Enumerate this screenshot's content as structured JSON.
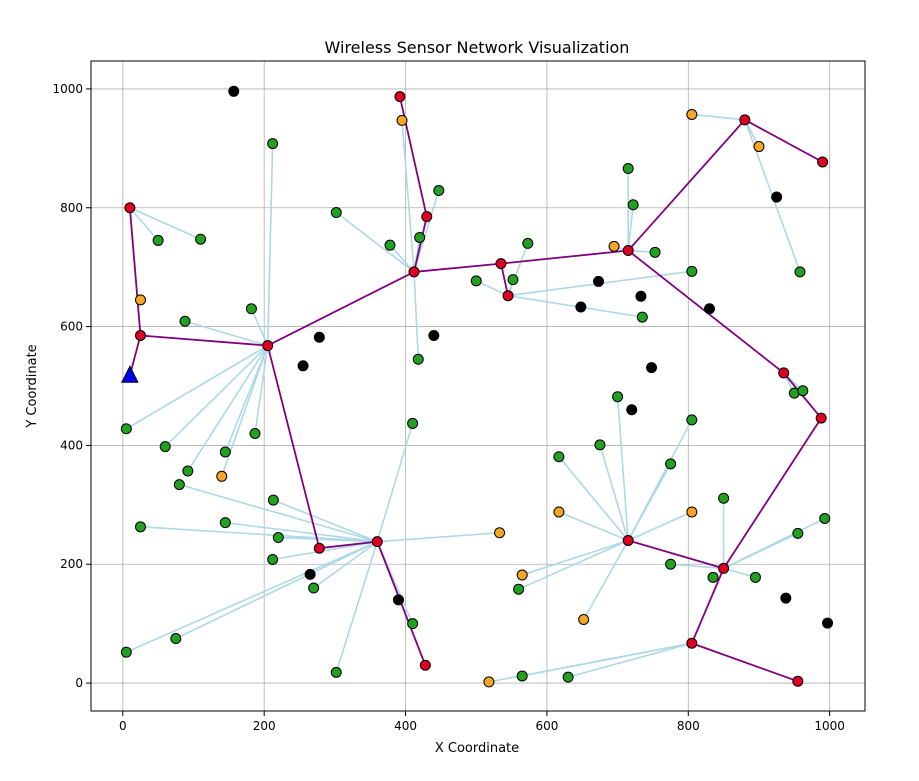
{
  "chart_data": {
    "type": "scatter",
    "title": "Wireless Sensor Network Visualization",
    "xlabel": "X Coordinate",
    "ylabel": "Y Coordinate",
    "xlim": [
      -45,
      1050
    ],
    "ylim": [
      -47,
      1047
    ],
    "xticks": [
      0,
      200,
      400,
      600,
      800,
      1000
    ],
    "yticks": [
      0,
      200,
      400,
      600,
      800,
      1000
    ],
    "grid": true,
    "colors": {
      "sensor": "#22a022",
      "sensor_highlight": "#ffffff",
      "cluster_head": "#dd0022",
      "gateway": "#f5a623",
      "dead": "#000000",
      "base_station": "#0000ee",
      "sensor_link": "#add8e6",
      "backbone_link": "#800080",
      "grid": "#b0b0b0"
    },
    "base_station": {
      "x": 10,
      "y": 518
    },
    "cluster_heads": [
      {
        "x": 10,
        "y": 800
      },
      {
        "x": 25,
        "y": 585
      },
      {
        "x": 205,
        "y": 568
      },
      {
        "x": 392,
        "y": 987
      },
      {
        "x": 430,
        "y": 785
      },
      {
        "x": 412,
        "y": 692
      },
      {
        "x": 535,
        "y": 706
      },
      {
        "x": 545,
        "y": 652
      },
      {
        "x": 715,
        "y": 728
      },
      {
        "x": 880,
        "y": 948
      },
      {
        "x": 990,
        "y": 877
      },
      {
        "x": 935,
        "y": 522
      },
      {
        "x": 988,
        "y": 446
      },
      {
        "x": 278,
        "y": 227
      },
      {
        "x": 360,
        "y": 238
      },
      {
        "x": 428,
        "y": 30
      },
      {
        "x": 715,
        "y": 240
      },
      {
        "x": 850,
        "y": 193
      },
      {
        "x": 805,
        "y": 67
      },
      {
        "x": 955,
        "y": 3
      }
    ],
    "gateways": [
      {
        "x": 25,
        "y": 645
      },
      {
        "x": 140,
        "y": 348
      },
      {
        "x": 395,
        "y": 947
      },
      {
        "x": 695,
        "y": 735
      },
      {
        "x": 805,
        "y": 957
      },
      {
        "x": 900,
        "y": 903
      },
      {
        "x": 533,
        "y": 253
      },
      {
        "x": 565,
        "y": 182
      },
      {
        "x": 617,
        "y": 288
      },
      {
        "x": 652,
        "y": 107
      },
      {
        "x": 805,
        "y": 288
      },
      {
        "x": 518,
        "y": 2
      }
    ],
    "sensors": [
      {
        "x": 50,
        "y": 745
      },
      {
        "x": 110,
        "y": 747
      },
      {
        "x": 212,
        "y": 908
      },
      {
        "x": 302,
        "y": 792
      },
      {
        "x": 378,
        "y": 737
      },
      {
        "x": 420,
        "y": 750
      },
      {
        "x": 447,
        "y": 829
      },
      {
        "x": 182,
        "y": 630
      },
      {
        "x": 88,
        "y": 609
      },
      {
        "x": 418,
        "y": 545
      },
      {
        "x": 500,
        "y": 677
      },
      {
        "x": 552,
        "y": 679
      },
      {
        "x": 573,
        "y": 740
      },
      {
        "x": 722,
        "y": 805
      },
      {
        "x": 715,
        "y": 866
      },
      {
        "x": 753,
        "y": 725
      },
      {
        "x": 805,
        "y": 693
      },
      {
        "x": 735,
        "y": 616
      },
      {
        "x": 958,
        "y": 692
      },
      {
        "x": 950,
        "y": 488
      },
      {
        "x": 962,
        "y": 492
      },
      {
        "x": 5,
        "y": 428
      },
      {
        "x": 60,
        "y": 398
      },
      {
        "x": 92,
        "y": 357
      },
      {
        "x": 145,
        "y": 389
      },
      {
        "x": 187,
        "y": 420
      },
      {
        "x": 80,
        "y": 334
      },
      {
        "x": 213,
        "y": 308
      },
      {
        "x": 145,
        "y": 270
      },
      {
        "x": 25,
        "y": 263
      },
      {
        "x": 220,
        "y": 245
      },
      {
        "x": 212,
        "y": 208
      },
      {
        "x": 270,
        "y": 160
      },
      {
        "x": 5,
        "y": 52
      },
      {
        "x": 75,
        "y": 75
      },
      {
        "x": 302,
        "y": 18
      },
      {
        "x": 410,
        "y": 437
      },
      {
        "x": 410,
        "y": 100
      },
      {
        "x": 617,
        "y": 381
      },
      {
        "x": 675,
        "y": 401
      },
      {
        "x": 700,
        "y": 482
      },
      {
        "x": 805,
        "y": 443
      },
      {
        "x": 775,
        "y": 369
      },
      {
        "x": 850,
        "y": 311
      },
      {
        "x": 560,
        "y": 158
      },
      {
        "x": 775,
        "y": 200
      },
      {
        "x": 835,
        "y": 178
      },
      {
        "x": 895,
        "y": 178
      },
      {
        "x": 955,
        "y": 252
      },
      {
        "x": 993,
        "y": 277
      },
      {
        "x": 565,
        "y": 12
      },
      {
        "x": 630,
        "y": 10
      }
    ],
    "dead_nodes": [
      {
        "x": 157,
        "y": 996
      },
      {
        "x": 278,
        "y": 582
      },
      {
        "x": 255,
        "y": 534
      },
      {
        "x": 440,
        "y": 585
      },
      {
        "x": 648,
        "y": 633
      },
      {
        "x": 673,
        "y": 676
      },
      {
        "x": 733,
        "y": 651
      },
      {
        "x": 830,
        "y": 630
      },
      {
        "x": 925,
        "y": 818
      },
      {
        "x": 748,
        "y": 531
      },
      {
        "x": 720,
        "y": 460
      },
      {
        "x": 265,
        "y": 183
      },
      {
        "x": 390,
        "y": 140
      },
      {
        "x": 938,
        "y": 143
      },
      {
        "x": 997,
        "y": 101
      }
    ],
    "backbone_links": [
      [
        [
          10,
          518
        ],
        [
          25,
          585
        ]
      ],
      [
        [
          25,
          585
        ],
        [
          10,
          800
        ]
      ],
      [
        [
          25,
          585
        ],
        [
          205,
          568
        ]
      ],
      [
        [
          205,
          568
        ],
        [
          412,
          692
        ]
      ],
      [
        [
          205,
          568
        ],
        [
          278,
          227
        ]
      ],
      [
        [
          278,
          227
        ],
        [
          360,
          238
        ]
      ],
      [
        [
          360,
          238
        ],
        [
          428,
          30
        ]
      ],
      [
        [
          412,
          692
        ],
        [
          430,
          785
        ]
      ],
      [
        [
          430,
          785
        ],
        [
          392,
          987
        ]
      ],
      [
        [
          412,
          692
        ],
        [
          535,
          706
        ]
      ],
      [
        [
          535,
          706
        ],
        [
          545,
          652
        ]
      ],
      [
        [
          535,
          706
        ],
        [
          715,
          728
        ]
      ],
      [
        [
          715,
          728
        ],
        [
          880,
          948
        ]
      ],
      [
        [
          880,
          948
        ],
        [
          990,
          877
        ]
      ],
      [
        [
          715,
          728
        ],
        [
          935,
          522
        ]
      ],
      [
        [
          935,
          522
        ],
        [
          988,
          446
        ]
      ],
      [
        [
          988,
          446
        ],
        [
          850,
          193
        ]
      ],
      [
        [
          850,
          193
        ],
        [
          715,
          240
        ]
      ],
      [
        [
          850,
          193
        ],
        [
          805,
          67
        ]
      ],
      [
        [
          805,
          67
        ],
        [
          955,
          3
        ]
      ]
    ],
    "sensor_links": [
      [
        [
          10,
          800
        ],
        [
          50,
          745
        ]
      ],
      [
        [
          10,
          800
        ],
        [
          110,
          747
        ]
      ],
      [
        [
          205,
          568
        ],
        [
          212,
          908
        ]
      ],
      [
        [
          205,
          568
        ],
        [
          182,
          630
        ]
      ],
      [
        [
          205,
          568
        ],
        [
          88,
          609
        ]
      ],
      [
        [
          205,
          568
        ],
        [
          5,
          428
        ]
      ],
      [
        [
          205,
          568
        ],
        [
          60,
          398
        ]
      ],
      [
        [
          205,
          568
        ],
        [
          92,
          357
        ]
      ],
      [
        [
          205,
          568
        ],
        [
          145,
          389
        ]
      ],
      [
        [
          205,
          568
        ],
        [
          187,
          420
        ]
      ],
      [
        [
          205,
          568
        ],
        [
          140,
          348
        ]
      ],
      [
        [
          412,
          692
        ],
        [
          302,
          792
        ]
      ],
      [
        [
          412,
          692
        ],
        [
          378,
          737
        ]
      ],
      [
        [
          412,
          692
        ],
        [
          420,
          750
        ]
      ],
      [
        [
          412,
          692
        ],
        [
          447,
          829
        ]
      ],
      [
        [
          412,
          692
        ],
        [
          395,
          947
        ]
      ],
      [
        [
          412,
          692
        ],
        [
          418,
          545
        ]
      ],
      [
        [
          545,
          652
        ],
        [
          500,
          677
        ]
      ],
      [
        [
          545,
          652
        ],
        [
          552,
          679
        ]
      ],
      [
        [
          545,
          652
        ],
        [
          573,
          740
        ]
      ],
      [
        [
          545,
          652
        ],
        [
          805,
          693
        ]
      ],
      [
        [
          545,
          652
        ],
        [
          735,
          616
        ]
      ],
      [
        [
          715,
          728
        ],
        [
          722,
          805
        ]
      ],
      [
        [
          715,
          728
        ],
        [
          715,
          866
        ]
      ],
      [
        [
          715,
          728
        ],
        [
          695,
          735
        ]
      ],
      [
        [
          715,
          728
        ],
        [
          753,
          725
        ]
      ],
      [
        [
          880,
          948
        ],
        [
          805,
          957
        ]
      ],
      [
        [
          880,
          948
        ],
        [
          900,
          903
        ]
      ],
      [
        [
          880,
          948
        ],
        [
          958,
          692
        ]
      ],
      [
        [
          935,
          522
        ],
        [
          950,
          488
        ]
      ],
      [
        [
          935,
          522
        ],
        [
          962,
          492
        ]
      ],
      [
        [
          360,
          238
        ],
        [
          80,
          334
        ]
      ],
      [
        [
          360,
          238
        ],
        [
          213,
          308
        ]
      ],
      [
        [
          360,
          238
        ],
        [
          145,
          270
        ]
      ],
      [
        [
          360,
          238
        ],
        [
          25,
          263
        ]
      ],
      [
        [
          360,
          238
        ],
        [
          220,
          245
        ]
      ],
      [
        [
          360,
          238
        ],
        [
          212,
          208
        ]
      ],
      [
        [
          360,
          238
        ],
        [
          270,
          160
        ]
      ],
      [
        [
          360,
          238
        ],
        [
          5,
          52
        ]
      ],
      [
        [
          360,
          238
        ],
        [
          75,
          75
        ]
      ],
      [
        [
          360,
          238
        ],
        [
          302,
          18
        ]
      ],
      [
        [
          360,
          238
        ],
        [
          410,
          437
        ]
      ],
      [
        [
          360,
          238
        ],
        [
          410,
          100
        ]
      ],
      [
        [
          360,
          238
        ],
        [
          533,
          253
        ]
      ],
      [
        [
          715,
          240
        ],
        [
          617,
          381
        ]
      ],
      [
        [
          715,
          240
        ],
        [
          675,
          401
        ]
      ],
      [
        [
          715,
          240
        ],
        [
          700,
          482
        ]
      ],
      [
        [
          715,
          240
        ],
        [
          805,
          443
        ]
      ],
      [
        [
          715,
          240
        ],
        [
          775,
          369
        ]
      ],
      [
        [
          715,
          240
        ],
        [
          805,
          288
        ]
      ],
      [
        [
          715,
          240
        ],
        [
          617,
          288
        ]
      ],
      [
        [
          715,
          240
        ],
        [
          565,
          182
        ]
      ],
      [
        [
          715,
          240
        ],
        [
          560,
          158
        ]
      ],
      [
        [
          715,
          240
        ],
        [
          652,
          107
        ]
      ],
      [
        [
          850,
          193
        ],
        [
          850,
          311
        ]
      ],
      [
        [
          850,
          193
        ],
        [
          775,
          200
        ]
      ],
      [
        [
          850,
          193
        ],
        [
          835,
          178
        ]
      ],
      [
        [
          850,
          193
        ],
        [
          895,
          178
        ]
      ],
      [
        [
          850,
          193
        ],
        [
          955,
          252
        ]
      ],
      [
        [
          850,
          193
        ],
        [
          993,
          277
        ]
      ],
      [
        [
          805,
          67
        ],
        [
          518,
          2
        ]
      ],
      [
        [
          805,
          67
        ],
        [
          565,
          12
        ]
      ],
      [
        [
          805,
          67
        ],
        [
          630,
          10
        ]
      ]
    ]
  }
}
